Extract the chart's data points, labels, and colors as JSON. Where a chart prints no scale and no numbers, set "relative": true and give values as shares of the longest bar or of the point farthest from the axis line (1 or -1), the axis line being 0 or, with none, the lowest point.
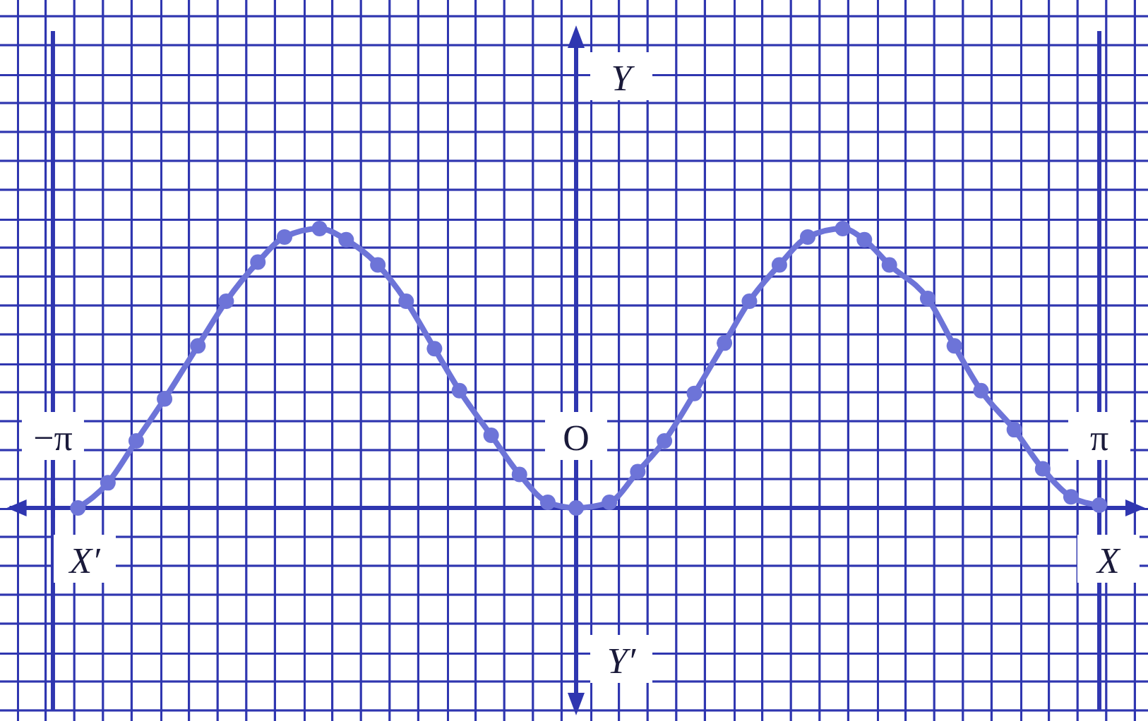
{
  "chart_data": {
    "type": "line",
    "relative": true,
    "xlabel": "X",
    "ylabel": "Y",
    "annotations": [
      "X′",
      "Y′"
    ],
    "x": [
      -2.99,
      -2.81,
      -2.64,
      -2.47,
      -2.27,
      -2.1,
      -1.91,
      -1.75,
      -1.54,
      -1.38,
      -1.19,
      -1.02,
      -0.85,
      -0.7,
      -0.51,
      -0.34,
      -0.17,
      0,
      0.2,
      0.37,
      0.53,
      0.71,
      0.89,
      1.04,
      1.22,
      1.39,
      1.6,
      1.73,
      1.88,
      2.11,
      2.27,
      2.43,
      2.63,
      2.8,
      2.97,
      3.14
    ],
    "series": [
      {
        "color": "#6d74d8",
        "values": [
          0,
          0.09,
          0.24,
          0.39,
          0.58,
          0.74,
          0.88,
          0.97,
          1,
          0.96,
          0.87,
          0.74,
          0.57,
          0.42,
          0.26,
          0.12,
          0.02,
          0,
          0.02,
          0.13,
          0.24,
          0.41,
          0.59,
          0.74,
          0.87,
          0.97,
          1,
          0.96,
          0.87,
          0.75,
          0.58,
          0.42,
          0.28,
          0.14,
          0.04,
          0.01
        ]
      }
    ],
    "xlim": [
      -3.4,
      3.4
    ],
    "xticks": [
      {
        "value": -3.14,
        "label": "−π"
      },
      {
        "value": 0,
        "label": "O"
      },
      {
        "value": 3.14,
        "label": "π"
      }
    ],
    "grid": "x",
    "marker": "circle",
    "line_style": "solid"
  }
}
